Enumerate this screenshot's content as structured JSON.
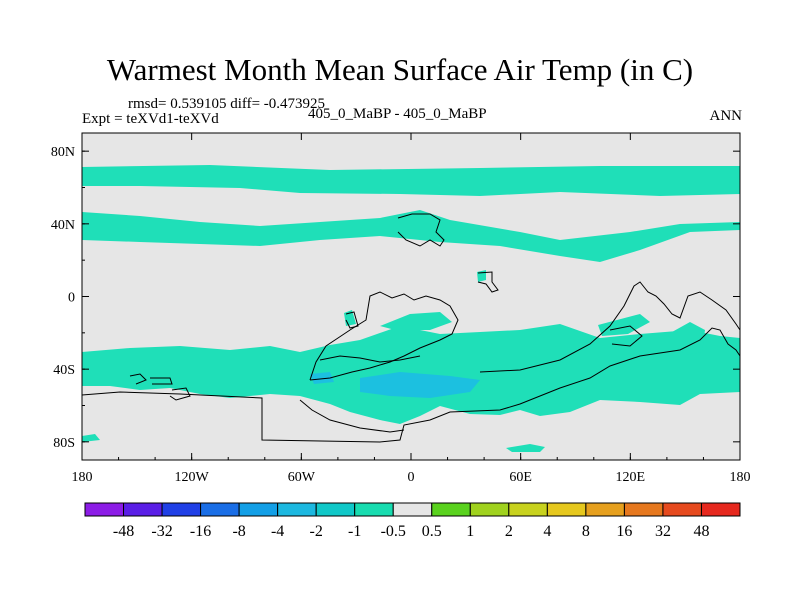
{
  "chart_data": {
    "type": "heatmap",
    "title": "Warmest Month Mean Surface Air Temp (in C)",
    "stats_text": "rmsd= 0.539105 diff= -0.473925",
    "experiment_text": "Expt = teXVd1-teXVd",
    "period_text": "405_0_MaBP - 405_0_MaBP",
    "season_text": "ANN",
    "x_ticks": [
      "180",
      "120W",
      "60W",
      "0",
      "60E",
      "120E",
      "180"
    ],
    "y_ticks": [
      "80N",
      "40N",
      "0",
      "40S",
      "80S"
    ],
    "x_range": [
      -180,
      180
    ],
    "y_range": [
      -90,
      90
    ],
    "colorbar_levels": [
      "-48",
      "-32",
      "-16",
      "-8",
      "-4",
      "-2",
      "-1",
      "-0.5",
      "0.5",
      "1",
      "2",
      "4",
      "8",
      "16",
      "32",
      "48"
    ],
    "colorbar_colors": [
      "#8c1ce6",
      "#5a1ee6",
      "#2040e6",
      "#1a6ee6",
      "#139fe6",
      "#1cb8e0",
      "#10c8c8",
      "#18dcb0",
      "#e6e6e6",
      "#5ad21e",
      "#a0d21e",
      "#c8d21e",
      "#e6c81e",
      "#e6a01e",
      "#e6781e",
      "#e64a1e",
      "#e6281e"
    ],
    "background_color": "#e6e6e6",
    "anomaly_color": "#1fdfb8",
    "strong_anomaly_color": "#1cc0e0"
  }
}
